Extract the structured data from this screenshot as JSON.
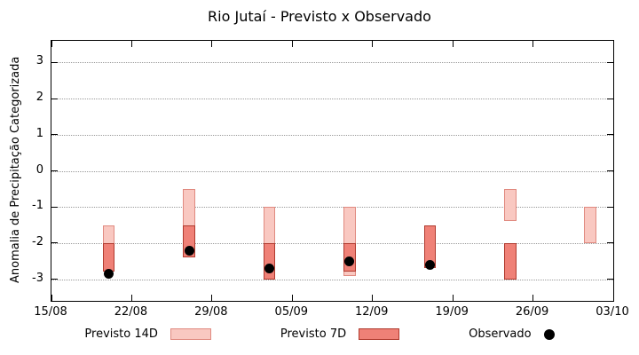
{
  "chart_data": {
    "type": "candlestick-bar",
    "title": "Rio Jutaí - Previsto x Observado",
    "xlabel": "",
    "ylabel": "Anomalia de Precipitação Categorizada",
    "ylim": [
      -3.6,
      3.6
    ],
    "yticks": [
      3,
      2,
      1,
      0,
      -1,
      -2,
      -3
    ],
    "x_span_days": 49,
    "xticks": [
      {
        "day": 0,
        "label": "15/08"
      },
      {
        "day": 7,
        "label": "22/08"
      },
      {
        "day": 14,
        "label": "29/08"
      },
      {
        "day": 21,
        "label": "05/09"
      },
      {
        "day": 28,
        "label": "12/09"
      },
      {
        "day": 35,
        "label": "19/09"
      },
      {
        "day": 42,
        "label": "26/09"
      },
      {
        "day": 49,
        "label": "03/10"
      }
    ],
    "grid": "horizontal-dotted",
    "bar_width_days": 1.05,
    "legend": [
      {
        "label": "Previsto 14D",
        "type": "box"
      },
      {
        "label": "Previsto 7D",
        "type": "box"
      },
      {
        "label": "Observado",
        "type": "dot"
      }
    ],
    "series": [
      {
        "date": "20/08",
        "day": 5,
        "previsto14": [
          -2.6,
          -1.5
        ],
        "previsto7": [
          -2.8,
          -2.0
        ],
        "observado": -2.85
      },
      {
        "date": "27/08",
        "day": 12,
        "previsto14": [
          -2.3,
          -0.5
        ],
        "previsto7": [
          -2.4,
          -1.5
        ],
        "observado": -2.2
      },
      {
        "date": "03/09",
        "day": 19,
        "previsto14": [
          -2.9,
          -1.0
        ],
        "previsto7": [
          -3.0,
          -2.0
        ],
        "observado": -2.7
      },
      {
        "date": "10/09",
        "day": 26,
        "previsto14": [
          -2.9,
          -1.0
        ],
        "previsto7": [
          -2.8,
          -2.0
        ],
        "observado": -2.5
      },
      {
        "date": "17/09",
        "day": 33,
        "previsto14": null,
        "previsto7": [
          -2.7,
          -1.5
        ],
        "observado": -2.6
      },
      {
        "date": "24/09",
        "day": 40,
        "previsto14": [
          -1.4,
          -0.5
        ],
        "previsto7": [
          -3.0,
          -2.0
        ],
        "observado": null
      },
      {
        "date": "01/10",
        "day": 47,
        "previsto14": [
          -2.0,
          -1.0
        ],
        "previsto7": null,
        "observado": null
      }
    ],
    "colors": {
      "previsto14_fill": "#f9c8c1",
      "previsto14_border": "#e08a80",
      "previsto7_fill": "#ef8177",
      "previsto7_border": "#b03a2e",
      "observado": "#000000",
      "grid": "#9a9a9a",
      "axis": "#000000",
      "background": "#ffffff"
    }
  }
}
